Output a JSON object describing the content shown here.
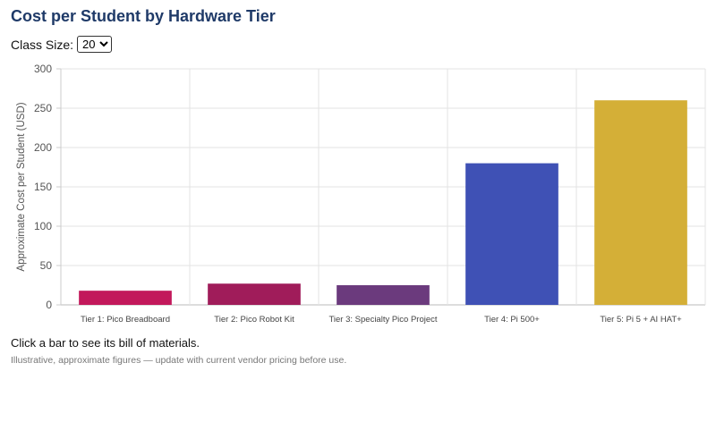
{
  "header": {
    "title": "Cost per Student by Hardware Tier"
  },
  "controls": {
    "class_size_label": "Class Size:",
    "class_size_value": "20",
    "class_size_options": [
      "20"
    ]
  },
  "footer": {
    "hint": "Click a bar to see its bill of materials.",
    "note": "Illustrative, approximate figures — update with current vendor pricing before use."
  },
  "chart_data": {
    "type": "bar",
    "title": "",
    "xlabel": "",
    "ylabel": "Approximate Cost per Student (USD)",
    "ylim": [
      0,
      300
    ],
    "yticks": [
      0,
      50,
      100,
      150,
      200,
      250,
      300
    ],
    "grid": true,
    "categories": [
      "Tier 1: Pico Breadboard",
      "Tier 2: Pico Robot Kit",
      "Tier 3: Specialty Pico Project",
      "Tier 4: Pi 500+",
      "Tier 5: Pi 5 + AI HAT+"
    ],
    "values": [
      18,
      27,
      25,
      180,
      260
    ],
    "colors": [
      "#c2185b",
      "#a01c5a",
      "#6b3a7d",
      "#3f51b5",
      "#d4af37"
    ]
  }
}
